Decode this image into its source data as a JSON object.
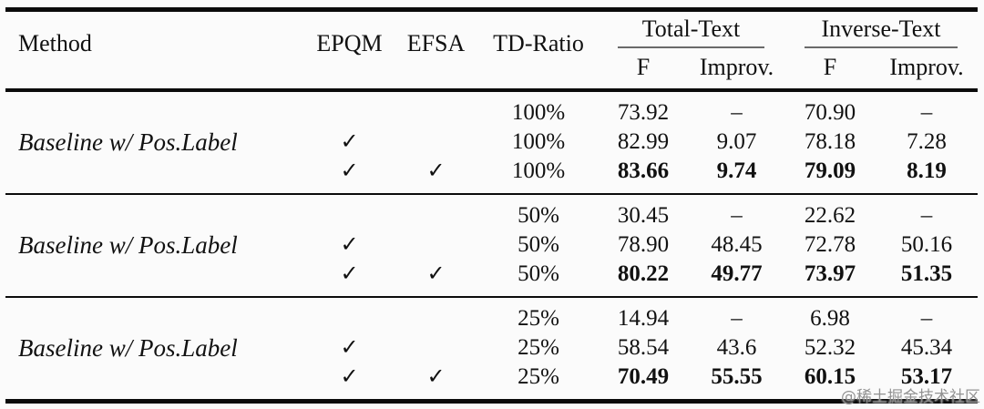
{
  "header": {
    "method": "Method",
    "epqm": "EPQM",
    "efsa": "EFSA",
    "td_ratio": "TD-Ratio",
    "total_text": {
      "label": "Total-Text",
      "f": "F",
      "improv": "Improv."
    },
    "inverse_text": {
      "label": "Inverse-Text",
      "f": "F",
      "improv": "Improv."
    }
  },
  "blocks": [
    {
      "method": "Baseline w/ Pos.Label",
      "rows": [
        {
          "epqm": "",
          "efsa": "",
          "td": "100%",
          "ttf": "73.92",
          "tti": "–",
          "itf": "70.90",
          "iti": "–"
        },
        {
          "epqm": "✓",
          "efsa": "",
          "td": "100%",
          "ttf": "82.99",
          "tti": "9.07",
          "itf": "78.18",
          "iti": "7.28"
        },
        {
          "epqm": "✓",
          "efsa": "✓",
          "td": "100%",
          "ttf": "83.66",
          "tti": "9.74",
          "itf": "79.09",
          "iti": "8.19"
        }
      ]
    },
    {
      "method": "Baseline w/ Pos.Label",
      "rows": [
        {
          "epqm": "",
          "efsa": "",
          "td": "50%",
          "ttf": "30.45",
          "tti": "–",
          "itf": "22.62",
          "iti": "–"
        },
        {
          "epqm": "✓",
          "efsa": "",
          "td": "50%",
          "ttf": "78.90",
          "tti": "48.45",
          "itf": "72.78",
          "iti": "50.16"
        },
        {
          "epqm": "✓",
          "efsa": "✓",
          "td": "50%",
          "ttf": "80.22",
          "tti": "49.77",
          "itf": "73.97",
          "iti": "51.35"
        }
      ]
    },
    {
      "method": "Baseline w/ Pos.Label",
      "rows": [
        {
          "epqm": "",
          "efsa": "",
          "td": "25%",
          "ttf": "14.94",
          "tti": "–",
          "itf": "6.98",
          "iti": "–"
        },
        {
          "epqm": "✓",
          "efsa": "",
          "td": "25%",
          "ttf": "58.54",
          "tti": "43.6",
          "itf": "52.32",
          "iti": "45.34"
        },
        {
          "epqm": "✓",
          "efsa": "✓",
          "td": "25%",
          "ttf": "70.49",
          "tti": "55.55",
          "itf": "60.15",
          "iti": "53.17"
        }
      ]
    }
  ],
  "watermark": "@稀土掘金技术社区",
  "chart_data": {
    "type": "table",
    "title": "Ablation of EPQM and EFSA at different TD-Ratios on Total-Text and Inverse-Text",
    "columns": [
      "Method",
      "EPQM",
      "EFSA",
      "TD-Ratio",
      "Total-Text F",
      "Total-Text Improv.",
      "Inverse-Text F",
      "Inverse-Text Improv."
    ],
    "rows": [
      [
        "Baseline w/ Pos.Label",
        false,
        false,
        "100%",
        73.92,
        null,
        70.9,
        null
      ],
      [
        "Baseline w/ Pos.Label",
        true,
        false,
        "100%",
        82.99,
        9.07,
        78.18,
        7.28
      ],
      [
        "Baseline w/ Pos.Label",
        true,
        true,
        "100%",
        83.66,
        9.74,
        79.09,
        8.19
      ],
      [
        "Baseline w/ Pos.Label",
        false,
        false,
        "50%",
        30.45,
        null,
        22.62,
        null
      ],
      [
        "Baseline w/ Pos.Label",
        true,
        false,
        "50%",
        78.9,
        48.45,
        72.78,
        50.16
      ],
      [
        "Baseline w/ Pos.Label",
        true,
        true,
        "50%",
        80.22,
        49.77,
        73.97,
        51.35
      ],
      [
        "Baseline w/ Pos.Label",
        false,
        false,
        "25%",
        14.94,
        null,
        6.98,
        null
      ],
      [
        "Baseline w/ Pos.Label",
        true,
        false,
        "25%",
        58.54,
        43.6,
        52.32,
        45.34
      ],
      [
        "Baseline w/ Pos.Label",
        true,
        true,
        "25%",
        70.49,
        55.55,
        60.15,
        53.17
      ]
    ],
    "bold_rows": [
      2,
      5,
      8
    ]
  }
}
